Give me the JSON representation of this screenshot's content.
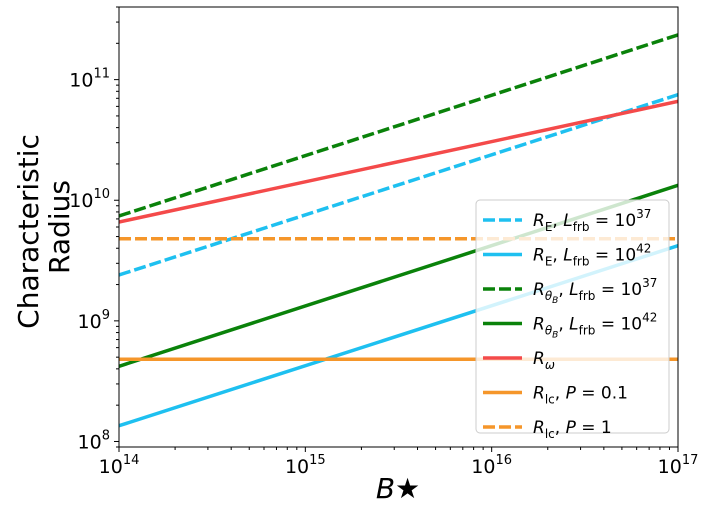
{
  "chart_data": {
    "type": "line",
    "xlabel": "B★",
    "ylabel": "Characteristic Radius",
    "ylabel_lines": [
      "Characteristic",
      "Radius"
    ],
    "x_scale": "log",
    "y_scale": "log",
    "xlim": [
      100000000000000.0,
      1e+17
    ],
    "ylim": [
      90000000.0,
      400000000000.0
    ],
    "x_ticks": [
      {
        "value": 100000000000000.0,
        "base": "10",
        "exp": "14"
      },
      {
        "value": 1000000000000000.0,
        "base": "10",
        "exp": "15"
      },
      {
        "value": 1e+16,
        "base": "10",
        "exp": "16"
      },
      {
        "value": 1e+17,
        "base": "10",
        "exp": "17"
      }
    ],
    "y_ticks": [
      {
        "value": 100000000.0,
        "base": "10",
        "exp": "8"
      },
      {
        "value": 1000000000.0,
        "base": "10",
        "exp": "9"
      },
      {
        "value": 10000000000.0,
        "base": "10",
        "exp": "10"
      },
      {
        "value": 100000000000.0,
        "base": "10",
        "exp": "11"
      }
    ],
    "grid": false,
    "legend_position": "lower-right",
    "series": [
      {
        "label": "R_E, L_frb = 10^37",
        "color": "#1ec0f0",
        "dash": true,
        "legend": {
          "sym": "R",
          "sub": "E",
          "sub_style": "normal",
          "tail": ", ",
          "pre": "L",
          "pre_sub": "frb",
          "eq": " = 10",
          "sup": "37"
        },
        "x": [
          100000000000000.0,
          1e+17
        ],
        "y": [
          2400000000.0,
          75000000000.0
        ]
      },
      {
        "label": "R_E, L_frb = 10^42",
        "color": "#1ec0f0",
        "dash": false,
        "legend": {
          "sym": "R",
          "sub": "E",
          "sub_style": "normal",
          "tail": ", ",
          "pre": "L",
          "pre_sub": "frb",
          "eq": " = 10",
          "sup": "42"
        },
        "x": [
          100000000000000.0,
          1e+17
        ],
        "y": [
          135000000.0,
          4200000000.0
        ]
      },
      {
        "label": "R_θB, L_frb = 10^37",
        "color": "#0a820a",
        "dash": true,
        "legend": {
          "sym": "R",
          "sub": "θ",
          "sub_style": "italic",
          "subsub": "B",
          "tail": ", ",
          "pre": "L",
          "pre_sub": "frb",
          "eq": " = 10",
          "sup": "37"
        },
        "x": [
          100000000000000.0,
          1e+17
        ],
        "y": [
          7400000000.0,
          235000000000.0
        ]
      },
      {
        "label": "R_θB, L_frb = 10^42",
        "color": "#0a820a",
        "dash": false,
        "legend": {
          "sym": "R",
          "sub": "θ",
          "sub_style": "italic",
          "subsub": "B",
          "tail": ", ",
          "pre": "L",
          "pre_sub": "frb",
          "eq": " = 10",
          "sup": "42"
        },
        "x": [
          100000000000000.0,
          1e+17
        ],
        "y": [
          420000000.0,
          13300000000.0
        ]
      },
      {
        "label": "R_ω",
        "color": "#f44a4a",
        "dash": false,
        "legend": {
          "sym": "R",
          "sub": "ω",
          "sub_style": "italic"
        },
        "x": [
          100000000000000.0,
          1e+17
        ],
        "y": [
          6600000000.0,
          66000000000.0
        ]
      },
      {
        "label": "R_lc, P = 0.1",
        "color": "#f5962a",
        "dash": false,
        "legend": {
          "sym": "R",
          "sub": "lc",
          "sub_style": "normal",
          "tail": ", ",
          "pre": "P",
          "eq": " = 0.1"
        },
        "x": [
          100000000000000.0,
          1e+17
        ],
        "y": [
          480000000.0,
          480000000.0
        ]
      },
      {
        "label": "R_lc, P = 1",
        "color": "#f5962a",
        "dash": true,
        "legend": {
          "sym": "R",
          "sub": "lc",
          "sub_style": "normal",
          "tail": ", ",
          "pre": "P",
          "eq": " = 1"
        },
        "x": [
          100000000000000.0,
          1e+17
        ],
        "y": [
          4800000000.0,
          4800000000.0
        ]
      }
    ]
  }
}
